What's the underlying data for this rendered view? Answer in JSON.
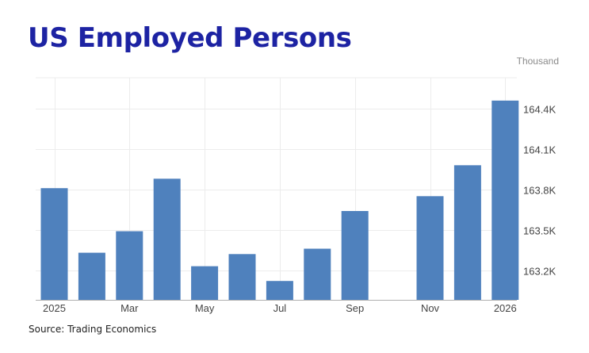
{
  "colors": {
    "title": "#1d23a3",
    "bar": "#4f81bd",
    "grid": "#ececec",
    "axis": "#b0b0b0",
    "tick_text": "#444444"
  },
  "chart_data": {
    "type": "bar",
    "title": "US Employed Persons",
    "unit_label": "Thousand",
    "source": "Source: Trading Economics",
    "categories": [
      "Jan 2025",
      "Feb 2025",
      "Mar 2025",
      "Apr 2025",
      "May 2025",
      "Jun 2025",
      "Jul 2025",
      "Aug 2025",
      "Sep 2025",
      "Oct 2025",
      "Nov 2025",
      "Dec 2025",
      "Jan 2026"
    ],
    "values": [
      163.81,
      163.33,
      163.49,
      163.88,
      163.23,
      163.32,
      163.12,
      163.36,
      163.64,
      null,
      163.75,
      163.98,
      164.46
    ],
    "x_tick_labels": [
      "2025",
      "",
      "Mar",
      "",
      "May",
      "",
      "Jul",
      "",
      "Sep",
      "",
      "Nov",
      "",
      "2026"
    ],
    "y_ticks": [
      163.2,
      163.5,
      163.8,
      164.1,
      164.4
    ],
    "y_tick_labels": [
      "163.2K",
      "163.5K",
      "163.8K",
      "164.1K",
      "164.4K"
    ],
    "ylim": [
      162.98,
      164.63
    ],
    "y_axis_position": "right",
    "grid": true,
    "legend": false
  }
}
